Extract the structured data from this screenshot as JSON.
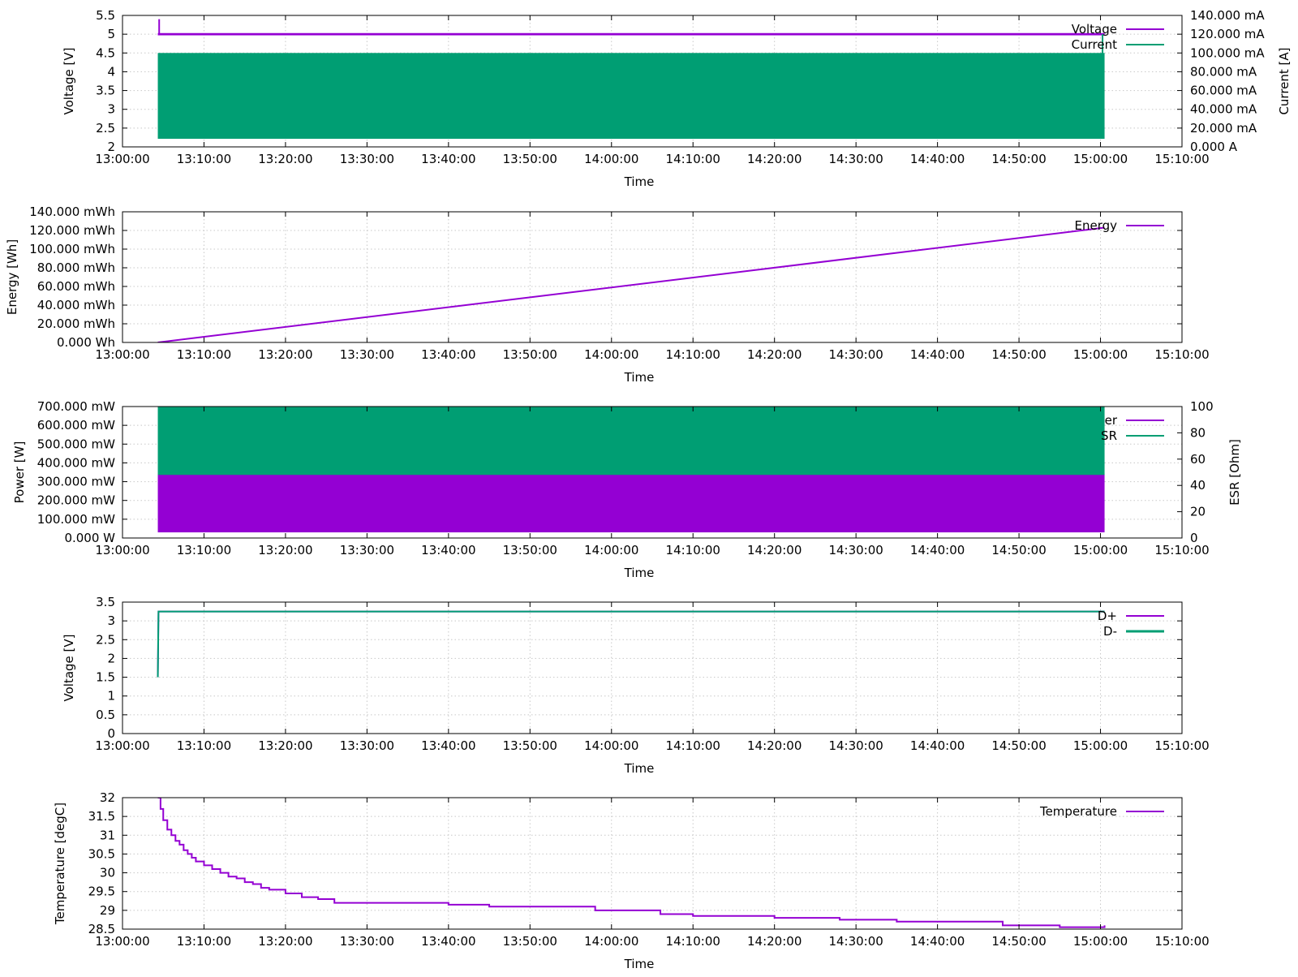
{
  "colors": {
    "purple": "#9400d3",
    "green": "#009e73"
  },
  "chart_data": [
    {
      "type": "line",
      "xlabel": "Time",
      "ylabel": "Voltage [V]",
      "y2label": "Current [A]",
      "xlim": [
        "13:00:00",
        "15:10:00"
      ],
      "xticks": [
        "13:00:00",
        "13:10:00",
        "13:20:00",
        "13:30:00",
        "13:40:00",
        "13:50:00",
        "14:00:00",
        "14:10:00",
        "14:20:00",
        "14:30:00",
        "14:40:00",
        "14:50:00",
        "15:00:00",
        "15:10:00"
      ],
      "ylim": [
        2,
        5.5
      ],
      "yticks": [
        2,
        2.5,
        3,
        3.5,
        4,
        4.5,
        5,
        5.5
      ],
      "ytick_labels": [
        "2",
        "2.5",
        "3",
        "3.5",
        "4",
        "4.5",
        "5",
        "5.5"
      ],
      "y2lim": [
        0,
        0.14
      ],
      "y2ticks": [
        0,
        0.02,
        0.04,
        0.06,
        0.08,
        0.1,
        0.12,
        0.14
      ],
      "y2tick_labels": [
        "0.000 A",
        "20.000 mA",
        "40.000 mA",
        "60.000 mA",
        "80.000 mA",
        "100.000 mA",
        "120.000 mA",
        "140.000 mA"
      ],
      "grid": true,
      "legend_position": "top-right",
      "series": [
        {
          "name": "Voltage",
          "axis": "y",
          "color": "#9400d3",
          "style": "band",
          "x": [
            "13:04:20",
            "15:00:30"
          ],
          "band": [
            4.97,
            5.03
          ],
          "spike": [
            "13:04:30",
            5.4
          ]
        },
        {
          "name": "Current",
          "axis": "y2",
          "color": "#009e73",
          "style": "band",
          "x": [
            "13:04:20",
            "15:00:30"
          ],
          "band": [
            0.0086,
            0.1
          ],
          "end_spike": [
            "15:00:15",
            0.12
          ]
        }
      ]
    },
    {
      "type": "line",
      "xlabel": "Time",
      "ylabel": "Energy [Wh]",
      "xlim": [
        "13:00:00",
        "15:10:00"
      ],
      "xticks": [
        "13:00:00",
        "13:10:00",
        "13:20:00",
        "13:30:00",
        "13:40:00",
        "13:50:00",
        "14:00:00",
        "14:10:00",
        "14:20:00",
        "14:30:00",
        "14:40:00",
        "14:50:00",
        "15:00:00",
        "15:10:00"
      ],
      "ylim": [
        0,
        0.14
      ],
      "yticks": [
        0,
        0.02,
        0.04,
        0.06,
        0.08,
        0.1,
        0.12,
        0.14
      ],
      "ytick_labels": [
        "0.000 Wh",
        "20.000 mWh",
        "40.000 mWh",
        "60.000 mWh",
        "80.000 mWh",
        "100.000 mWh",
        "120.000 mWh",
        "140.000 mWh"
      ],
      "grid": true,
      "legend_position": "top-right",
      "series": [
        {
          "name": "Energy",
          "axis": "y",
          "color": "#9400d3",
          "style": "line",
          "x": [
            "13:04:20",
            "15:00:30"
          ],
          "y": [
            0,
            0.123
          ]
        }
      ]
    },
    {
      "type": "line",
      "xlabel": "Time",
      "ylabel": "Power [W]",
      "y2label": "ESR [Ohm]",
      "xlim": [
        "13:00:00",
        "15:10:00"
      ],
      "xticks": [
        "13:00:00",
        "13:10:00",
        "13:20:00",
        "13:30:00",
        "13:40:00",
        "13:50:00",
        "14:00:00",
        "14:10:00",
        "14:20:00",
        "14:30:00",
        "14:40:00",
        "14:50:00",
        "15:00:00",
        "15:10:00"
      ],
      "ylim": [
        0,
        0.7
      ],
      "yticks": [
        0,
        0.1,
        0.2,
        0.3,
        0.4,
        0.5,
        0.6,
        0.7
      ],
      "ytick_labels": [
        "0.000 W",
        "100.000 mW",
        "200.000 mW",
        "300.000 mW",
        "400.000 mW",
        "500.000 mW",
        "600.000 mW",
        "700.000 mW"
      ],
      "y2lim": [
        0,
        100
      ],
      "y2ticks": [
        0,
        20,
        40,
        60,
        80,
        100
      ],
      "y2tick_labels": [
        "0",
        "20",
        "40",
        "60",
        "80",
        "100"
      ],
      "grid": true,
      "legend_position": "top-right",
      "legend_labels_visible": [
        "er",
        "SR"
      ],
      "series": [
        {
          "name": "Power",
          "axis": "y",
          "color": "#9400d3",
          "style": "band",
          "x": [
            "13:04:20",
            "15:00:30"
          ],
          "band": [
            0.03,
            0.34
          ]
        },
        {
          "name": "ESR",
          "axis": "y2",
          "color": "#009e73",
          "style": "band",
          "x": [
            "13:04:20",
            "15:00:30"
          ],
          "band": [
            48,
            100
          ]
        }
      ]
    },
    {
      "type": "line",
      "xlabel": "Time",
      "ylabel": "Voltage [V]",
      "xlim": [
        "13:00:00",
        "15:10:00"
      ],
      "xticks": [
        "13:00:00",
        "13:10:00",
        "13:20:00",
        "13:30:00",
        "13:40:00",
        "13:50:00",
        "14:00:00",
        "14:10:00",
        "14:20:00",
        "14:30:00",
        "14:40:00",
        "14:50:00",
        "15:00:00",
        "15:10:00"
      ],
      "ylim": [
        0,
        3.5
      ],
      "yticks": [
        0,
        0.5,
        1,
        1.5,
        2,
        2.5,
        3,
        3.5
      ],
      "ytick_labels": [
        "0",
        "0.5",
        "1",
        "1.5",
        "2",
        "2.5",
        "3",
        "3.5"
      ],
      "grid": true,
      "legend_position": "top-right",
      "series": [
        {
          "name": "D+",
          "axis": "y",
          "color": "#9400d3",
          "style": "line",
          "x": [
            "13:04:20",
            "13:04:25",
            "15:00:30"
          ],
          "y": [
            1.5,
            3.25,
            3.25
          ]
        },
        {
          "name": "D-",
          "axis": "y",
          "color": "#009e73",
          "style": "line",
          "x": [
            "13:04:20",
            "13:04:25",
            "15:00:30"
          ],
          "y": [
            1.5,
            3.25,
            3.25
          ]
        }
      ]
    },
    {
      "type": "line",
      "xlabel": "Time",
      "ylabel": "Temperature [degC]",
      "xlim": [
        "13:00:00",
        "15:10:00"
      ],
      "xticks": [
        "13:00:00",
        "13:10:00",
        "13:20:00",
        "13:30:00",
        "13:40:00",
        "13:50:00",
        "14:00:00",
        "14:10:00",
        "14:20:00",
        "14:30:00",
        "14:40:00",
        "14:50:00",
        "15:00:00",
        "15:10:00"
      ],
      "ylim": [
        28.5,
        32
      ],
      "yticks": [
        28.5,
        29,
        29.5,
        30,
        30.5,
        31,
        31.5,
        32
      ],
      "ytick_labels": [
        "28.5",
        "29",
        "29.5",
        "30",
        "30.5",
        "31",
        "31.5",
        "32"
      ],
      "grid": true,
      "legend_position": "top-right",
      "series": [
        {
          "name": "Temperature",
          "axis": "y",
          "color": "#9400d3",
          "style": "line",
          "x": [
            "13:04:20",
            "13:04:40",
            "13:05:00",
            "13:05:30",
            "13:06:00",
            "13:06:30",
            "13:07:00",
            "13:07:30",
            "13:08:00",
            "13:08:30",
            "13:09:00",
            "13:10:00",
            "13:11:00",
            "13:12:00",
            "13:13:00",
            "13:14:00",
            "13:15:00",
            "13:16:00",
            "13:17:00",
            "13:18:00",
            "13:20:00",
            "13:22:00",
            "13:24:00",
            "13:26:00",
            "13:30:00",
            "13:35:00",
            "13:40:00",
            "13:45:00",
            "13:50:00",
            "13:56:00",
            "13:58:00",
            "14:04:00",
            "14:06:00",
            "14:10:00",
            "14:20:00",
            "14:28:00",
            "14:35:00",
            "14:40:00",
            "14:48:00",
            "14:55:00",
            "15:00:30"
          ],
          "y": [
            32,
            31.7,
            31.4,
            31.15,
            31.0,
            30.85,
            30.75,
            30.6,
            30.5,
            30.4,
            30.3,
            30.2,
            30.1,
            30.0,
            29.9,
            29.85,
            29.75,
            29.7,
            29.6,
            29.55,
            29.45,
            29.35,
            29.3,
            29.2,
            29.2,
            29.2,
            29.15,
            29.1,
            29.1,
            29.1,
            29.0,
            29.0,
            28.9,
            28.85,
            28.8,
            28.75,
            28.7,
            28.7,
            28.6,
            28.55,
            28.6
          ]
        }
      ]
    }
  ]
}
